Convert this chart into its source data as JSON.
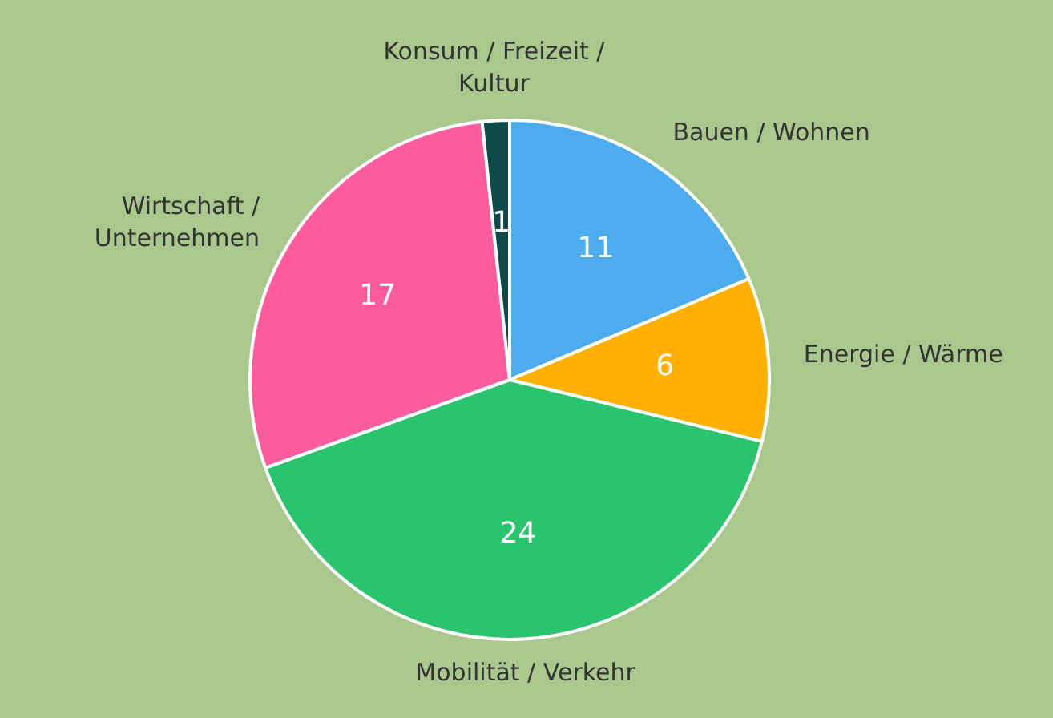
{
  "chart_data": {
    "type": "pie",
    "categories": [
      "Bauen / Wohnen",
      "Energie / Wärme",
      "Mobilität / Verkehr",
      "Wirtschaft / Unternehmen",
      "Konsum / Freizeit / Kultur"
    ],
    "values": [
      11,
      6,
      24,
      17,
      1
    ],
    "colors": [
      "#4dabf0",
      "#ffb000",
      "#2ac46e",
      "#ff5c9e",
      "#0f4a4a"
    ],
    "data_labels": true,
    "legend": false
  }
}
